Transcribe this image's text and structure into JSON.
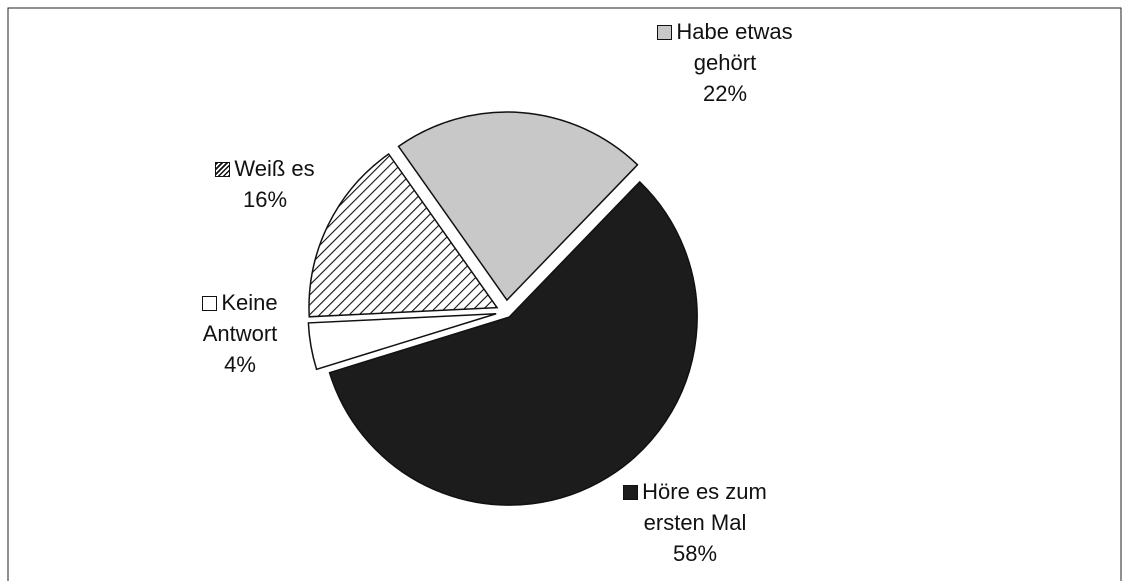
{
  "chart_data": {
    "type": "pie",
    "categories": [
      "Höre es zum ersten Mal",
      "Keine Antwort",
      "Weiß es",
      "Habe etwas gehört"
    ],
    "values": [
      58,
      4,
      16,
      22
    ],
    "value_labels": [
      "58%",
      "4%",
      "16%",
      "22%"
    ],
    "colors": [
      "#1c1c1c",
      "#ffffff",
      "#ffffff",
      "#c8c8c8"
    ],
    "hatch": [
      false,
      false,
      true,
      false
    ]
  }
}
